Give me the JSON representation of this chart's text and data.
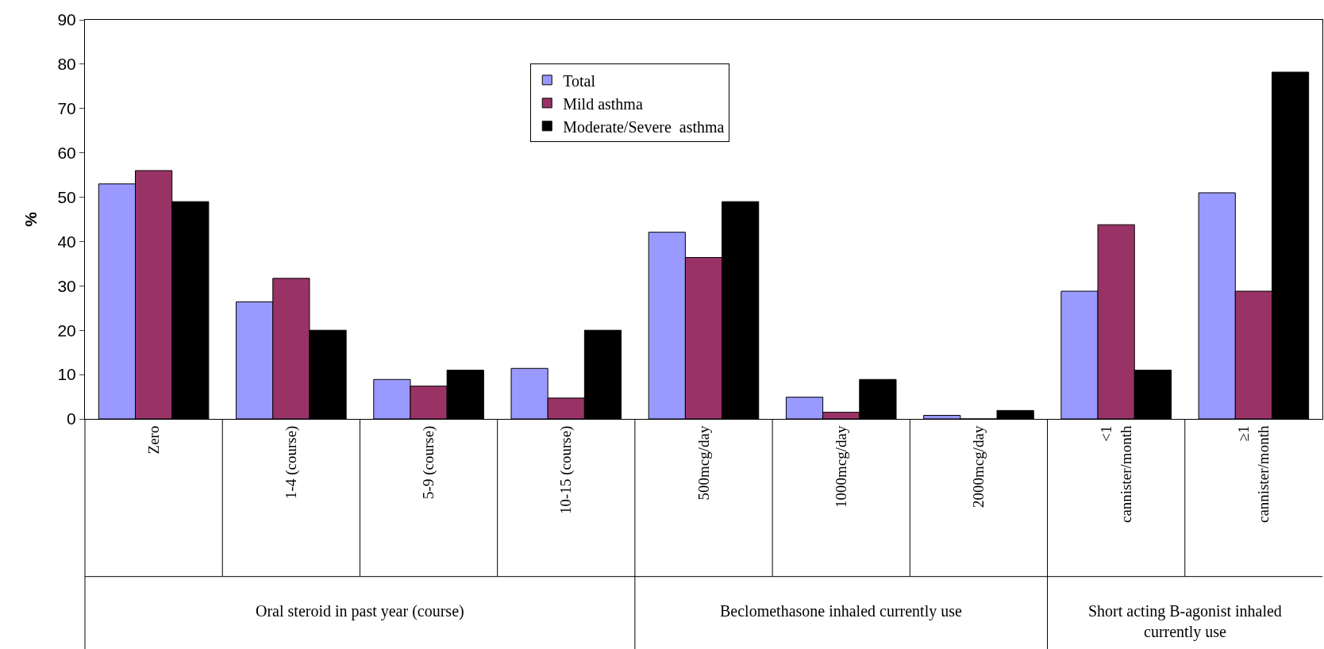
{
  "chart_data": {
    "type": "bar",
    "ylabel": "%",
    "categories": [
      "Zero",
      "1-4 (course)",
      "5-9 (course)",
      "10-15 (course)",
      "500mcg/day",
      "1000mcg/day",
      "2000mcg/day",
      "<1\ncannister/month",
      "≥1\ncannister/month"
    ],
    "series": [
      {
        "name": "Total",
        "color": "#9999ff",
        "values": [
          53,
          26.4,
          8.9,
          11.4,
          42.1,
          4.9,
          0.8,
          28.8,
          51
        ]
      },
      {
        "name": "Mild asthma",
        "color": "#993366",
        "values": [
          56,
          31.7,
          7.4,
          4.7,
          36.4,
          1.5,
          0,
          43.8,
          28.8
        ]
      },
      {
        "name": "Moderate/Severe  asthma",
        "color": "#000000",
        "values": [
          49,
          20,
          11,
          20,
          49,
          8.9,
          1.9,
          11,
          78.2
        ]
      }
    ],
    "ylim": [
      0,
      90
    ],
    "yticks": [
      0,
      10,
      20,
      30,
      40,
      50,
      60,
      70,
      80,
      90
    ],
    "legend": "top",
    "annotations": [
      "Oral steroid in past year (course)",
      "Beclomethasone inhaled currently use",
      "Short acting B-agonist inhaled\ncurrently use"
    ]
  }
}
